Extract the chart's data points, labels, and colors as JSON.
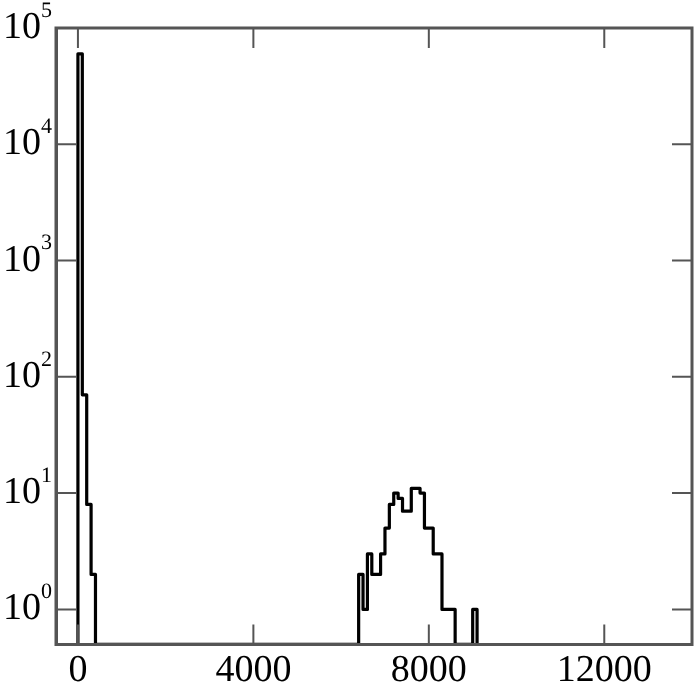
{
  "chart_data": {
    "type": "histogram",
    "bins": [
      0,
      100,
      200,
      300,
      400,
      500,
      600,
      700,
      800,
      900,
      1000,
      1100,
      1200,
      1300,
      1400,
      1500,
      1600,
      1700,
      1800,
      1900,
      2000,
      2100,
      2200,
      2300,
      2400,
      2500,
      2600,
      2700,
      2800,
      2900,
      3000,
      3100,
      3200,
      3300,
      3400,
      3500,
      3600,
      3700,
      3800,
      3900,
      4000,
      4100,
      4200,
      4300,
      4400,
      4500,
      4600,
      4700,
      4800,
      4900,
      5000,
      5100,
      5200,
      5300,
      5400,
      5500,
      5600,
      5700,
      5800,
      5900,
      6000,
      6100,
      6200,
      6300,
      6400,
      6500,
      6600,
      6700,
      6800,
      6900,
      7000,
      7100,
      7200,
      7300,
      7400,
      7500,
      7600,
      7700,
      7800,
      7900,
      8000,
      8100,
      8200,
      8300,
      8400,
      8500,
      8600,
      8700,
      8800,
      8900,
      9000,
      9100
    ],
    "values": [
      60000,
      70,
      8,
      2,
      null,
      null,
      null,
      null,
      null,
      null,
      null,
      null,
      null,
      null,
      null,
      null,
      null,
      null,
      null,
      null,
      null,
      null,
      null,
      null,
      null,
      null,
      null,
      null,
      null,
      null,
      null,
      null,
      null,
      null,
      null,
      null,
      null,
      null,
      null,
      null,
      null,
      null,
      null,
      null,
      null,
      null,
      null,
      null,
      null,
      null,
      null,
      null,
      null,
      null,
      null,
      null,
      null,
      null,
      null,
      null,
      null,
      null,
      null,
      null,
      2,
      1,
      3,
      2,
      2,
      3,
      5,
      8,
      10,
      9,
      7,
      7,
      11,
      11,
      10,
      5,
      5,
      3,
      3,
      1,
      1,
      1,
      null,
      null,
      null,
      null,
      1
    ],
    "color": "#000000",
    "log": "y",
    "xlim": [
      -500,
      14000
    ],
    "xticks": [
      0,
      4000,
      8000,
      12000
    ],
    "ylim": [
      0.5,
      100000
    ],
    "yticks": [
      {
        "value": 1,
        "label": "10$^{0}$"
      },
      {
        "value": 10,
        "label": "10$^{1}$"
      },
      {
        "value": 100,
        "label": "10$^{2}$"
      },
      {
        "value": 1000,
        "label": "10$^{3}$"
      },
      {
        "value": 10000,
        "label": "10$^{4}$"
      },
      {
        "value": 100000,
        "label": "10$^{5}$"
      }
    ],
    "grid": false,
    "legend": false
  }
}
